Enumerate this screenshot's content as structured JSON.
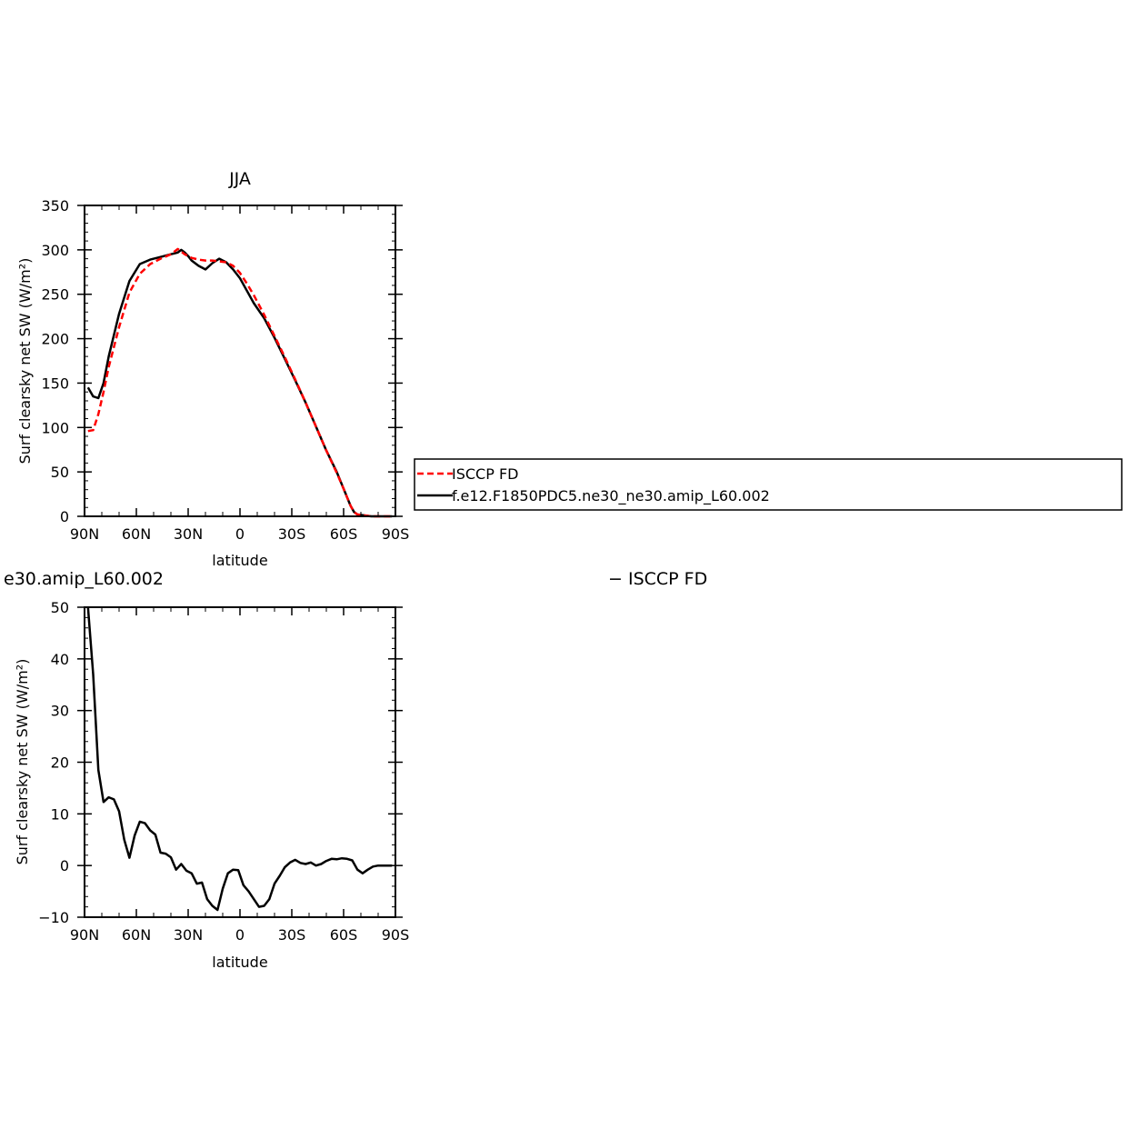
{
  "colors": {
    "obs": "#ff0000",
    "model": "#000000"
  },
  "legend": {
    "items": [
      {
        "label": "ISCCP FD",
        "color": "#ff0000",
        "style": "dashed"
      },
      {
        "label": "f.e12.F1850PDC5.ne30_ne30.amip_L60.002",
        "color": "#000000",
        "style": "solid"
      }
    ]
  },
  "chart_data": [
    {
      "type": "line",
      "title": "JJA",
      "xlabel": "latitude",
      "ylabel": "Surf clearsky net SW (W/m²)",
      "xlim": [
        90,
        -90
      ],
      "ylim": [
        0,
        350
      ],
      "x_ticks": [
        {
          "value": 90,
          "label": "90N"
        },
        {
          "value": 60,
          "label": "60N"
        },
        {
          "value": 30,
          "label": "30N"
        },
        {
          "value": 0,
          "label": "0"
        },
        {
          "value": -30,
          "label": "30S"
        },
        {
          "value": -60,
          "label": "60S"
        },
        {
          "value": -90,
          "label": "90S"
        }
      ],
      "y_ticks": [
        0,
        50,
        100,
        150,
        200,
        250,
        300,
        350
      ],
      "series": [
        {
          "name": "ISCCP FD",
          "color": "#ff0000",
          "style": "dashed",
          "x": [
            88,
            85,
            82,
            79,
            76,
            70,
            64,
            58,
            52,
            46,
            40,
            36,
            32,
            28,
            24,
            20,
            16,
            12,
            8,
            4,
            0,
            -4,
            -8,
            -14,
            -20,
            -26,
            -32,
            -38,
            -44,
            -50,
            -56,
            -60,
            -64,
            -66,
            -68,
            -72,
            -76,
            -80,
            -84,
            -88
          ],
          "y": [
            96,
            97,
            115,
            140,
            168,
            213,
            252,
            273,
            284,
            290,
            295,
            301,
            295,
            291,
            289,
            288,
            288,
            287,
            286,
            282,
            274,
            262,
            249,
            227,
            203,
            179,
            154,
            128,
            101,
            74,
            49,
            31,
            12,
            5,
            2,
            1,
            0,
            0,
            0,
            0
          ]
        },
        {
          "name": "f.e12.F1850PDC5.ne30_ne30.amip_L60.002",
          "color": "#000000",
          "style": "solid",
          "x": [
            88,
            85,
            82,
            79,
            76,
            70,
            64,
            58,
            52,
            46,
            40,
            36,
            34,
            32,
            30,
            28,
            24,
            20,
            16,
            12,
            8,
            4,
            0,
            -4,
            -8,
            -14,
            -20,
            -26,
            -32,
            -38,
            -44,
            -50,
            -56,
            -60,
            -64,
            -66,
            -68,
            -72,
            -76,
            -80,
            -84,
            -88
          ],
          "y": [
            145,
            135,
            133,
            150,
            180,
            228,
            265,
            284,
            289,
            292,
            295,
            297,
            300,
            297,
            293,
            288,
            282,
            278,
            285,
            290,
            286,
            278,
            268,
            254,
            240,
            223,
            201,
            177,
            153,
            128,
            101,
            74,
            50,
            31,
            12,
            5,
            2,
            1,
            0,
            0,
            0,
            0
          ]
        }
      ]
    },
    {
      "type": "line",
      "title": "e30.amip_L60.002",
      "title_right": "− ISCCP FD",
      "xlabel": "latitude",
      "ylabel": "Surf clearsky net SW (W/m²)",
      "xlim": [
        90,
        -90
      ],
      "ylim": [
        -10,
        50
      ],
      "x_ticks": [
        {
          "value": 90,
          "label": "90N"
        },
        {
          "value": 60,
          "label": "60N"
        },
        {
          "value": 30,
          "label": "30N"
        },
        {
          "value": 0,
          "label": "0"
        },
        {
          "value": -30,
          "label": "30S"
        },
        {
          "value": -60,
          "label": "60S"
        },
        {
          "value": -90,
          "label": "90S"
        }
      ],
      "y_ticks": [
        -10,
        0,
        10,
        20,
        30,
        40,
        50
      ],
      "series": [
        {
          "name": "",
          "color": "#000000",
          "style": "solid",
          "x": [
            88,
            85,
            82,
            79,
            76,
            73,
            70,
            67,
            64,
            61,
            58,
            55,
            52,
            49,
            46,
            43,
            40,
            37,
            34,
            31,
            28,
            25,
            22,
            19,
            16,
            13,
            10,
            7,
            4,
            1,
            -2,
            -5,
            -8,
            -11,
            -14,
            -17,
            -20,
            -23,
            -26,
            -29,
            -32,
            -35,
            -38,
            -41,
            -44,
            -47,
            -50,
            -53,
            -56,
            -59,
            -62,
            -65,
            -68,
            -71,
            -74,
            -77,
            -80,
            -84,
            -88
          ],
          "y": [
            50,
            37,
            18.5,
            12.3,
            13.2,
            12.8,
            10.5,
            5,
            1.5,
            5.8,
            8.5,
            8.2,
            6.8,
            6,
            2.5,
            2.3,
            1.6,
            -0.8,
            0.3,
            -1,
            -1.5,
            -3.5,
            -3.3,
            -6.5,
            -7.8,
            -8.6,
            -4.5,
            -1.5,
            -0.8,
            -0.9,
            -3.8,
            -5,
            -6.5,
            -8,
            -7.8,
            -6.5,
            -3.5,
            -2,
            -0.3,
            0.6,
            1.1,
            0.5,
            0.3,
            0.6,
            0,
            0.3,
            0.9,
            1.3,
            1.2,
            1.4,
            1.3,
            1,
            -0.8,
            -1.5,
            -0.8,
            -0.2,
            0,
            0,
            0
          ]
        }
      ]
    }
  ]
}
